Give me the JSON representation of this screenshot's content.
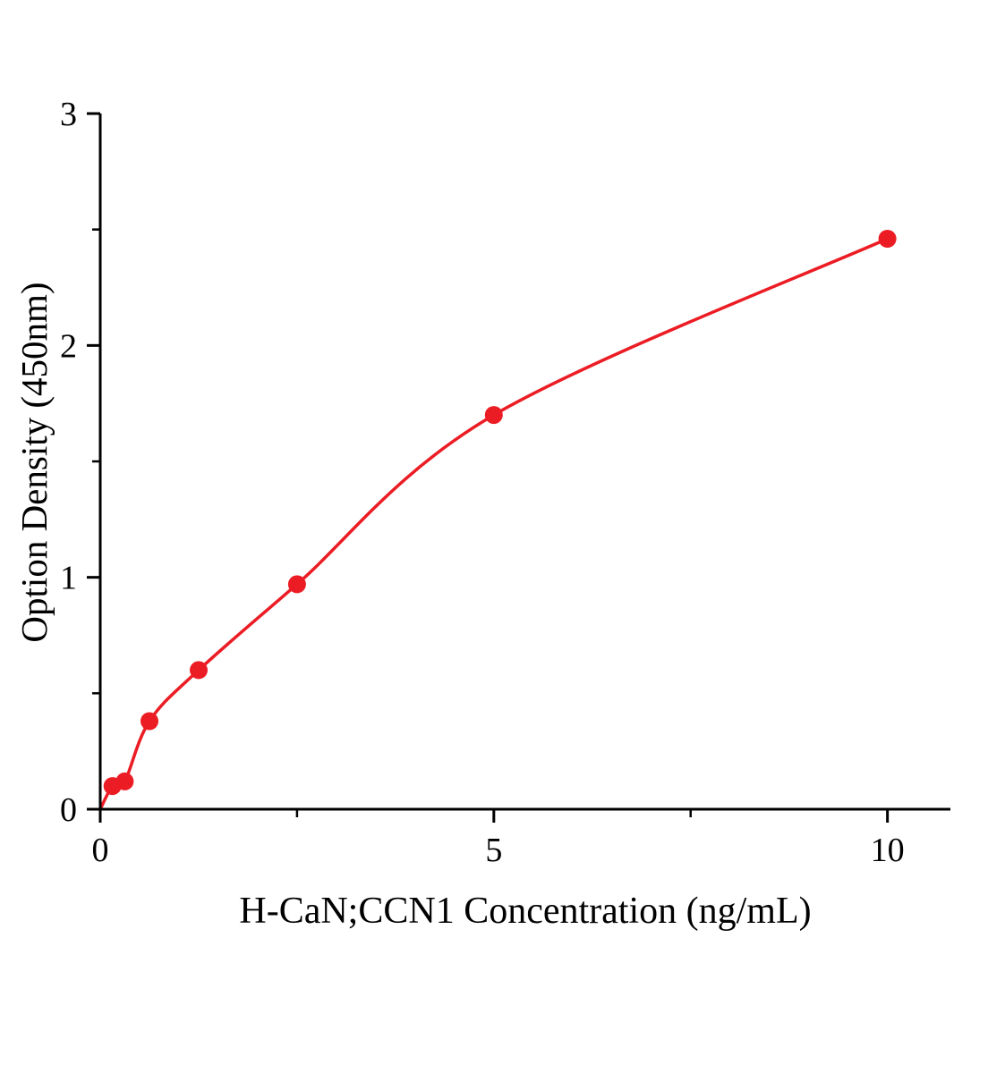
{
  "chart_data": {
    "type": "scatter",
    "title": "",
    "xlabel": "H-CaN;CCN1 Concentration (ng/mL)",
    "ylabel": "Option Density (450nm)",
    "x": [
      0.156,
      0.312,
      0.625,
      1.25,
      2.5,
      5,
      10
    ],
    "y": [
      0.1,
      0.12,
      0.38,
      0.6,
      0.97,
      1.7,
      2.46
    ],
    "curve_start": [
      0,
      0
    ],
    "xlim": [
      0,
      10.8
    ],
    "ylim": [
      0,
      3
    ],
    "x_major_ticks": [
      0,
      5,
      10
    ],
    "x_minor_ticks": [
      2.5,
      7.5
    ],
    "y_major_ticks": [
      0,
      1,
      2,
      3
    ],
    "y_minor_ticks": [
      0.5,
      1.5,
      2.5
    ],
    "grid": false,
    "legend": false,
    "point_color": "#ec1c24",
    "line_color": "#ec1c24",
    "axis_color": "#000000"
  }
}
